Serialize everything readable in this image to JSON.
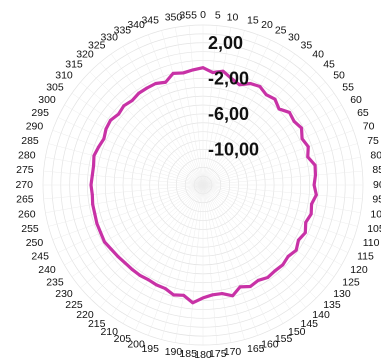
{
  "chart_data": {
    "type": "radar",
    "title": "",
    "angle_unit": "degrees",
    "angle_ticks": [
      0,
      5,
      10,
      15,
      20,
      25,
      30,
      35,
      40,
      45,
      50,
      55,
      60,
      65,
      70,
      75,
      80,
      85,
      90,
      95,
      100,
      105,
      110,
      115,
      120,
      125,
      130,
      135,
      140,
      145,
      150,
      155,
      160,
      165,
      170,
      175,
      180,
      185,
      190,
      195,
      200,
      205,
      210,
      215,
      220,
      225,
      230,
      235,
      240,
      245,
      250,
      255,
      260,
      265,
      270,
      275,
      280,
      285,
      290,
      295,
      300,
      305,
      310,
      315,
      320,
      325,
      330,
      335,
      340,
      345,
      350,
      355
    ],
    "radial_tick_labels": [
      "2,00",
      "-2,00",
      "-6,00",
      "-10,00"
    ],
    "radial_ticks": [
      2,
      -2,
      -6,
      -10
    ],
    "rlim": [
      -14,
      4
    ],
    "grid": true,
    "series": [
      {
        "color": "#c832a6",
        "theta": [
          0,
          5,
          10,
          15,
          20,
          25,
          30,
          35,
          40,
          45,
          50,
          55,
          60,
          65,
          70,
          75,
          80,
          85,
          90,
          95,
          100,
          105,
          110,
          115,
          120,
          125,
          130,
          135,
          140,
          145,
          150,
          155,
          160,
          165,
          170,
          175,
          180,
          185,
          190,
          195,
          200,
          205,
          210,
          215,
          220,
          225,
          230,
          235,
          240,
          245,
          250,
          255,
          260,
          265,
          270,
          275,
          280,
          285,
          290,
          295,
          300,
          305,
          310,
          315,
          320,
          325,
          330,
          335,
          340,
          345,
          350,
          355
        ],
        "r": [
          -0.8,
          -1.3,
          -1.0,
          -1.6,
          -2.0,
          -1.4,
          -1.2,
          -1.6,
          -1.4,
          -1.9,
          -1.3,
          -1.5,
          -1.2,
          -1.7,
          -1.4,
          -1.8,
          -1.2,
          -1.3,
          -1.5,
          -1.2,
          -1.6,
          -1.4,
          -1.7,
          -1.3,
          -1.6,
          -1.2,
          -1.5,
          -1.3,
          -1.4,
          -1.3,
          -1.6,
          -1.4,
          -1.8,
          -1.1,
          -1.6,
          -1.6,
          -1.3,
          -0.7,
          -1.4,
          -1.2,
          -1.6,
          -1.6,
          -1.7,
          -1.6,
          -1.6,
          -1.6,
          -1.5,
          -1.4,
          -1.2,
          -1.3,
          -1.3,
          -1.4,
          -1.4,
          -1.5,
          -1.4,
          -1.5,
          -1.5,
          -1.3,
          -1.5,
          -1.7,
          -1.4,
          -1.3,
          -1.6,
          -1.4,
          -1.6,
          -1.4,
          -1.4,
          -1.4,
          -1.7,
          -1.0,
          -1.2,
          -1.0
        ]
      }
    ]
  }
}
